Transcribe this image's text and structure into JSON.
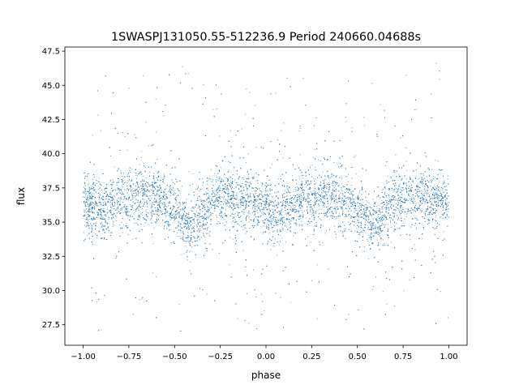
{
  "chart_data": {
    "type": "scatter",
    "title": "1SWASPJ131050.55-512236.9 Period 240660.04688s",
    "xlabel": "phase",
    "ylabel": "flux",
    "xlim": [
      -1.1,
      1.1
    ],
    "ylim": [
      26.0,
      47.8
    ],
    "xticks": [
      -1.0,
      -0.75,
      -0.5,
      -0.25,
      0.0,
      0.25,
      0.5,
      0.75,
      1.0
    ],
    "xtick_labels": [
      "−1.00",
      "−0.75",
      "−0.50",
      "−0.25",
      "0.00",
      "0.25",
      "0.50",
      "0.75",
      "1.00"
    ],
    "yticks": [
      27.5,
      30.0,
      32.5,
      35.0,
      37.5,
      40.0,
      42.5,
      45.0,
      47.5
    ],
    "ytick_labels": [
      "27.5",
      "30.0",
      "32.5",
      "35.0",
      "37.5",
      "40.0",
      "42.5",
      "45.0",
      "47.5"
    ],
    "grid": false,
    "marker_color": "#1f77b4",
    "series": [
      {
        "phase_range": [
          -1.0,
          1.0
        ],
        "median_flux_profile": {
          "phase": [
            -1.0,
            -0.9,
            -0.8,
            -0.7,
            -0.6,
            -0.5,
            -0.45,
            -0.42,
            -0.35,
            -0.25,
            -0.15,
            -0.05,
            0.0,
            0.05,
            0.15,
            0.25,
            0.35,
            0.45,
            0.55,
            0.58,
            0.65,
            0.75,
            0.85,
            0.95,
            1.0
          ],
          "flux": [
            36.3,
            36.0,
            36.5,
            37.2,
            36.8,
            35.8,
            35.0,
            34.4,
            35.8,
            37.0,
            36.8,
            36.2,
            35.8,
            35.5,
            36.2,
            37.0,
            37.0,
            36.3,
            35.3,
            34.5,
            35.8,
            36.8,
            36.8,
            36.4,
            36.3
          ]
        },
        "typical_scatter_flux": 1.1,
        "outlier_flux_range": [
          27.0,
          47.0
        ]
      }
    ]
  }
}
